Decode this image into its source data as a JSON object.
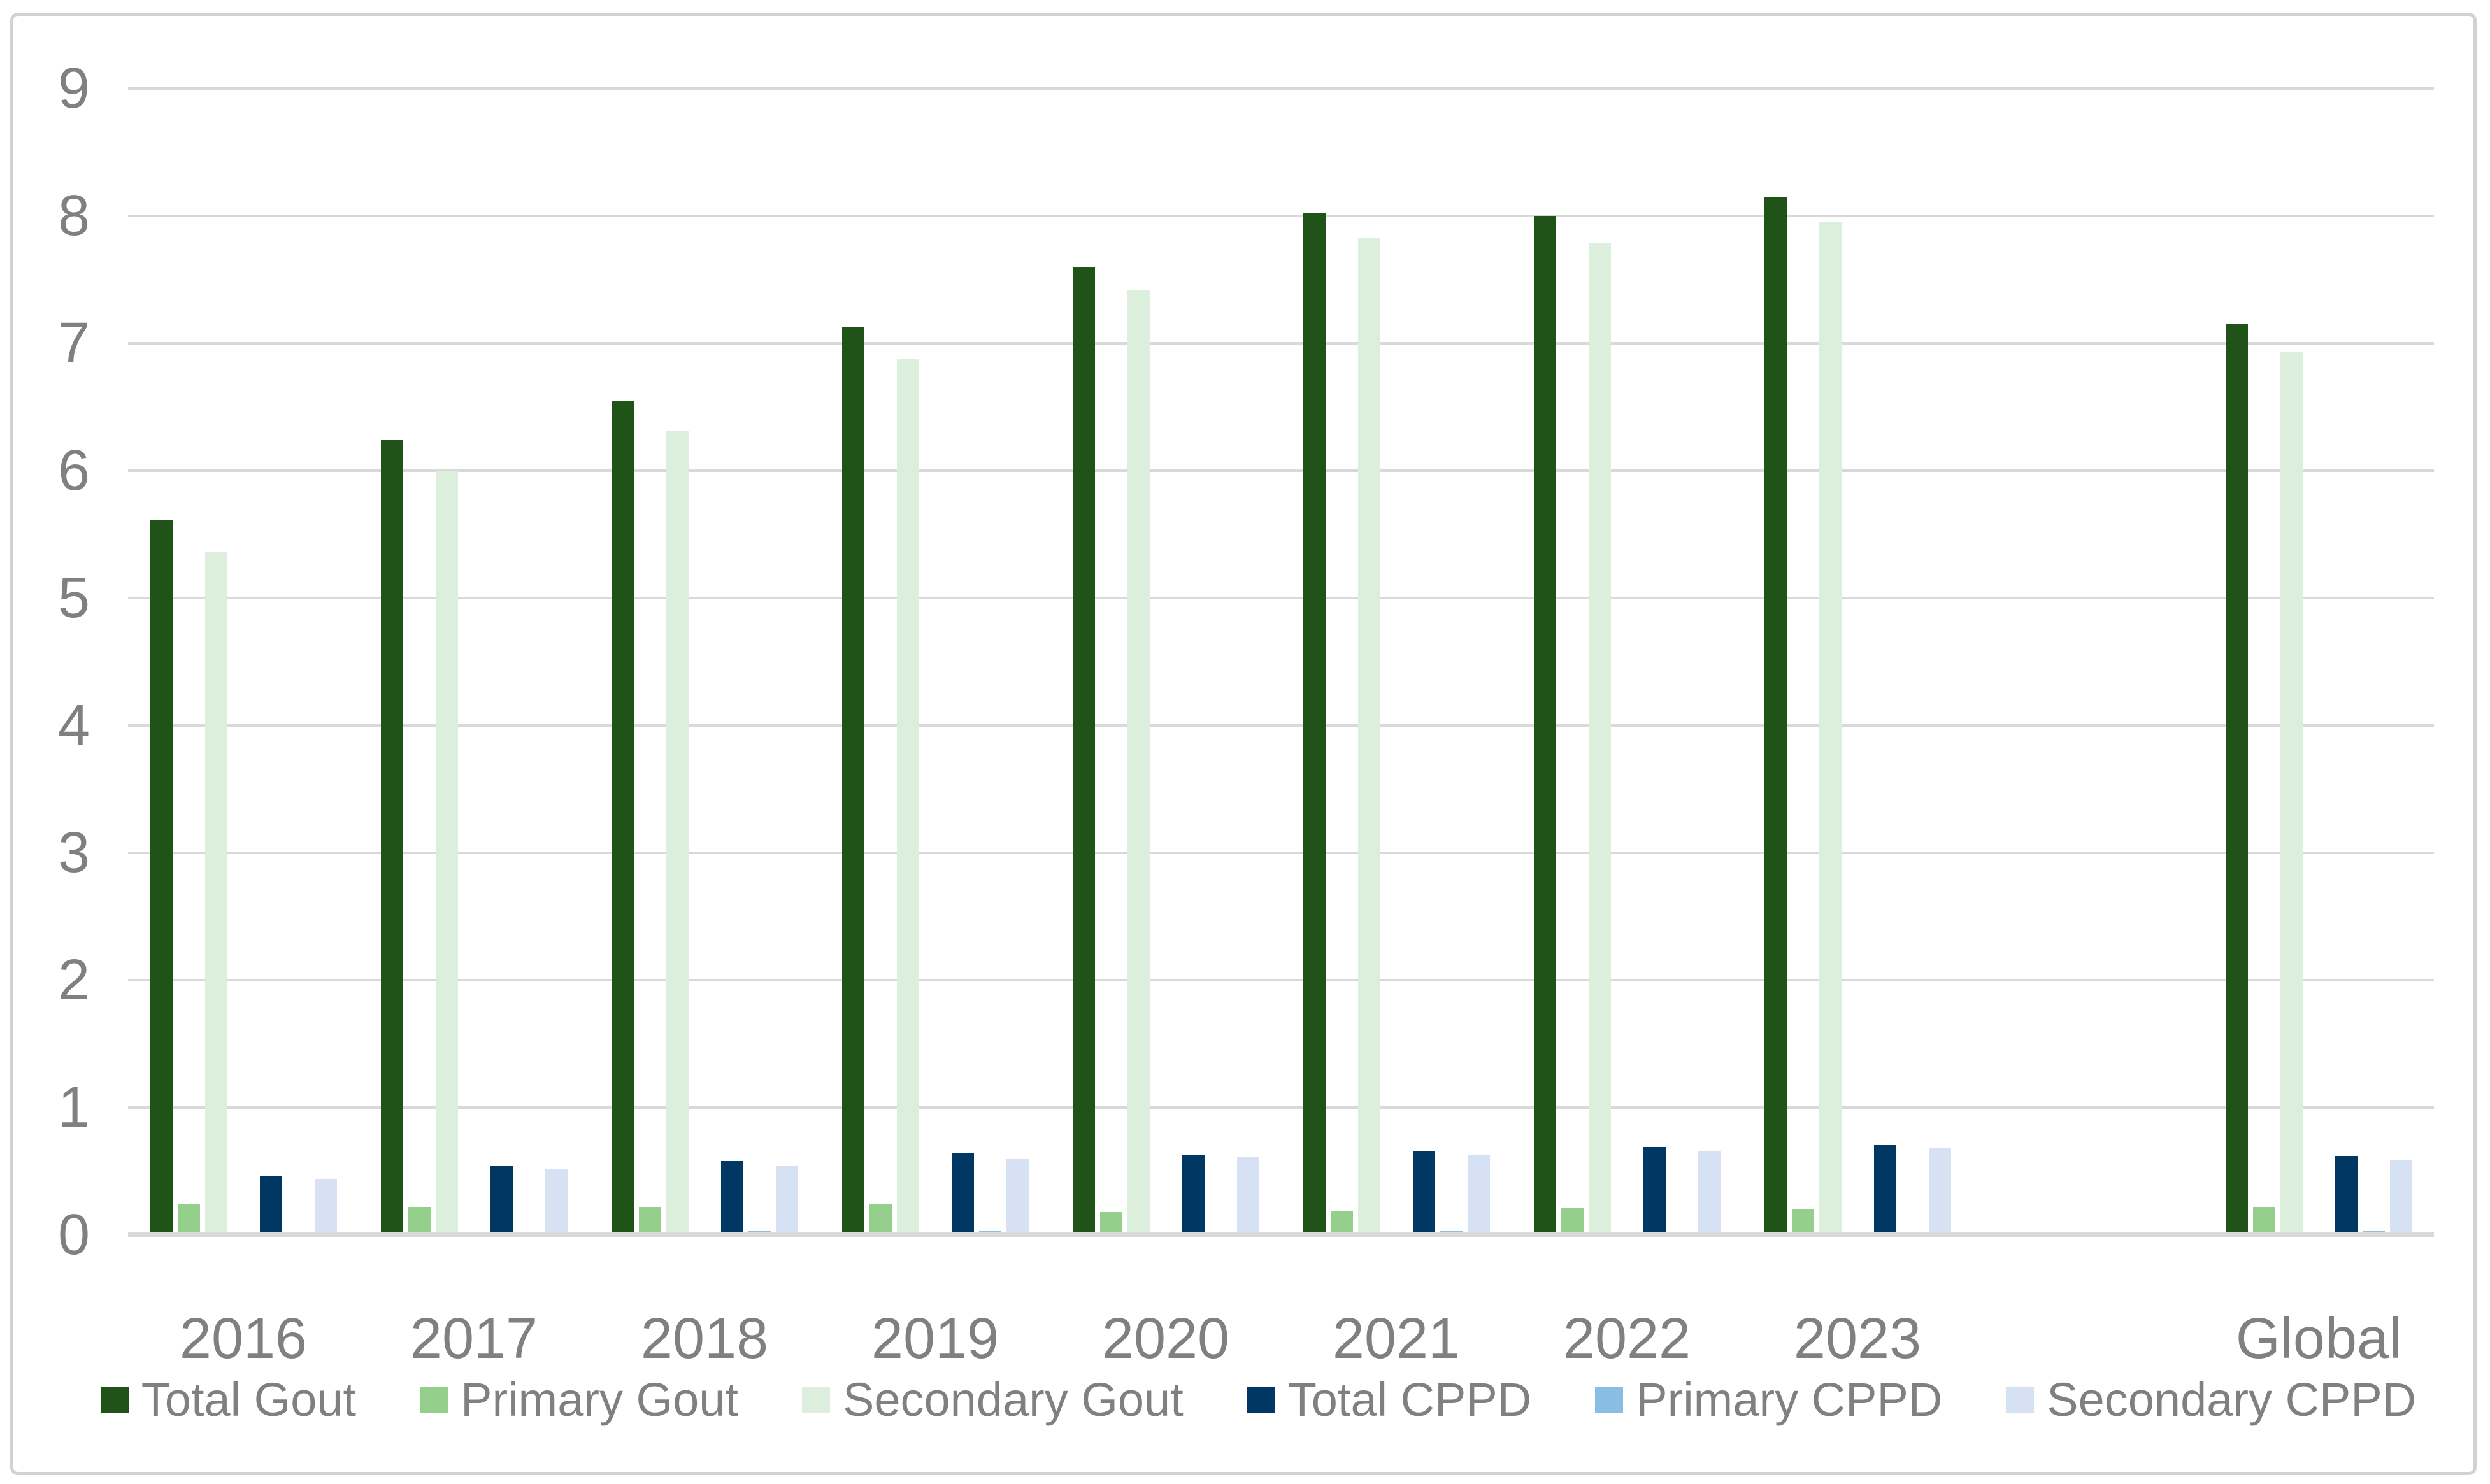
{
  "figure": {
    "background": "#FFFFFF",
    "border_color": "#D2D2D2",
    "gridline_color": "#D9D9D9",
    "axis_text_color": "#808080"
  },
  "chart_data": {
    "type": "bar",
    "title": "",
    "xlabel": "",
    "ylabel": "",
    "ylim": [
      0,
      9
    ],
    "y_ticks": [
      0,
      1,
      2,
      3,
      4,
      5,
      6,
      7,
      8,
      9
    ],
    "grid": "horizontal",
    "legend_position": "bottom",
    "categories": [
      "2016",
      "2017",
      "2018",
      "2019",
      "2020",
      "2021",
      "2022",
      "2023",
      "Global"
    ],
    "empty_slot_before_last_category": true,
    "series": [
      {
        "name": "Total Gout",
        "color": "#1F5318",
        "values": [
          5.61,
          6.24,
          6.55,
          7.13,
          7.6,
          8.02,
          8.0,
          8.15,
          7.15
        ]
      },
      {
        "name": "Primary Gout",
        "color": "#94D08C",
        "values": [
          0.24,
          0.22,
          0.22,
          0.24,
          0.18,
          0.19,
          0.21,
          0.2,
          0.22
        ]
      },
      {
        "name": "Secondary Gout",
        "color": "#DCEEDC",
        "values": [
          5.36,
          6.0,
          6.31,
          6.88,
          7.42,
          7.83,
          7.79,
          7.95,
          6.93
        ]
      },
      {
        "name": "Total CPPD",
        "color": "#003763",
        "values": [
          0.46,
          0.54,
          0.58,
          0.64,
          0.63,
          0.66,
          0.69,
          0.71,
          0.62
        ]
      },
      {
        "name": "Primary CPPD",
        "color": "#89BDE1",
        "values": [
          0.02,
          0.01,
          0.03,
          0.03,
          0.01,
          0.03,
          0.02,
          0.02,
          0.03
        ]
      },
      {
        "name": "Secondary CPPD",
        "color": "#D6E2F3",
        "values": [
          0.44,
          0.52,
          0.54,
          0.6,
          0.61,
          0.63,
          0.66,
          0.68,
          0.59
        ]
      }
    ]
  }
}
